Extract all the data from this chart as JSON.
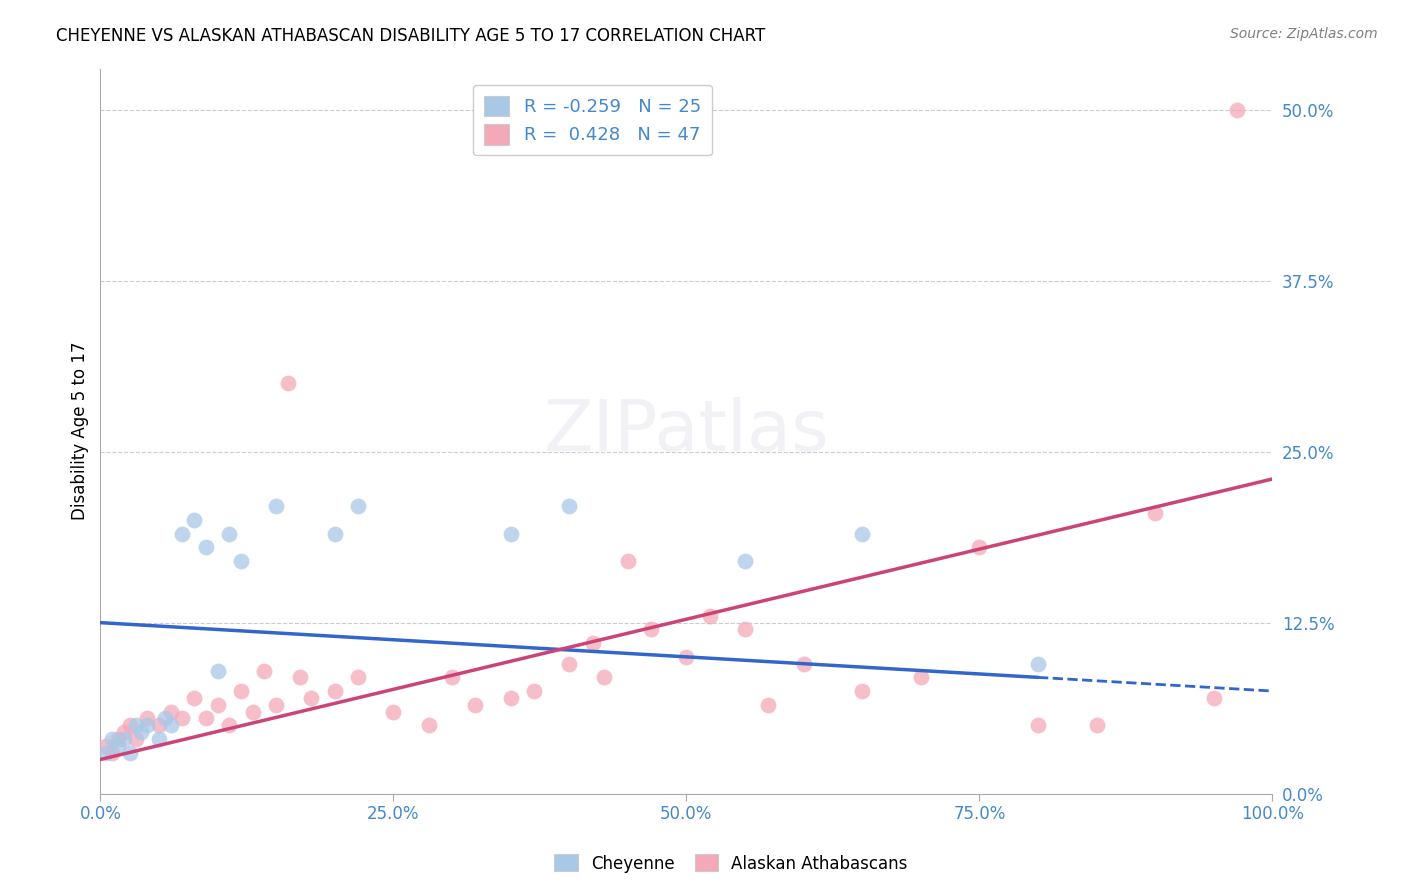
{
  "title": "CHEYENNE VS ALASKAN ATHABASCAN DISABILITY AGE 5 TO 17 CORRELATION CHART",
  "source": "Source: ZipAtlas.com",
  "ylabel": "Disability Age 5 to 17",
  "xlim": [
    0,
    100
  ],
  "ylim": [
    0,
    53
  ],
  "yticks": [
    0,
    12.5,
    25.0,
    37.5,
    50.0
  ],
  "xticks": [
    0,
    25,
    50,
    75,
    100
  ],
  "xtick_labels": [
    "0.0%",
    "25.0%",
    "50.0%",
    "75.0%",
    "100.0%"
  ],
  "ytick_labels": [
    "0.0%",
    "12.5%",
    "25.0%",
    "37.5%",
    "50.0%"
  ],
  "cheyenne_color": "#a8c8e8",
  "alaskan_color": "#f4a8b8",
  "cheyenne_line_color": "#3366cc",
  "alaskan_line_color": "#cc4477",
  "legend_R_cheyenne": "-0.259",
  "legend_N_cheyenne": "25",
  "legend_R_alaskan": "0.428",
  "legend_N_alaskan": "47",
  "cheyenne_x": [
    0.5,
    1.0,
    1.5,
    2.0,
    2.5,
    3.0,
    3.5,
    4.0,
    5.0,
    5.5,
    6.0,
    7.0,
    8.0,
    9.0,
    10.0,
    11.0,
    12.0,
    15.0,
    20.0,
    22.0,
    35.0,
    40.0,
    55.0,
    65.0,
    80.0
  ],
  "cheyenne_y": [
    3.0,
    4.0,
    3.5,
    4.0,
    3.0,
    5.0,
    4.5,
    5.0,
    4.0,
    5.5,
    5.0,
    19.0,
    20.0,
    18.0,
    9.0,
    19.0,
    17.0,
    21.0,
    19.0,
    21.0,
    19.0,
    21.0,
    17.0,
    19.0,
    9.5
  ],
  "alaskan_x": [
    0.5,
    1.0,
    1.5,
    2.0,
    2.5,
    3.0,
    4.0,
    5.0,
    6.0,
    7.0,
    8.0,
    9.0,
    10.0,
    11.0,
    12.0,
    13.0,
    14.0,
    15.0,
    16.0,
    17.0,
    18.0,
    20.0,
    22.0,
    25.0,
    28.0,
    30.0,
    32.0,
    35.0,
    37.0,
    40.0,
    42.0,
    43.0,
    45.0,
    47.0,
    50.0,
    52.0,
    55.0,
    57.0,
    60.0,
    65.0,
    70.0,
    75.0,
    80.0,
    85.0,
    90.0,
    95.0,
    97.0
  ],
  "alaskan_y": [
    3.5,
    3.0,
    4.0,
    4.5,
    5.0,
    4.0,
    5.5,
    5.0,
    6.0,
    5.5,
    7.0,
    5.5,
    6.5,
    5.0,
    7.5,
    6.0,
    9.0,
    6.5,
    30.0,
    8.5,
    7.0,
    7.5,
    8.5,
    6.0,
    5.0,
    8.5,
    6.5,
    7.0,
    7.5,
    9.5,
    11.0,
    8.5,
    17.0,
    12.0,
    10.0,
    13.0,
    12.0,
    6.5,
    9.5,
    7.5,
    8.5,
    18.0,
    5.0,
    5.0,
    20.5,
    7.0,
    50.0
  ],
  "cheyenne_line_x0": 0,
  "cheyenne_line_x1": 100,
  "cheyenne_line_y0": 12.5,
  "cheyenne_line_y1": 7.5,
  "cheyenne_solid_end": 80,
  "alaskan_line_x0": 0,
  "alaskan_line_x1": 100,
  "alaskan_line_y0": 2.5,
  "alaskan_line_y1": 23.0,
  "background_color": "#ffffff",
  "grid_color": "#cccccc",
  "tick_label_color": "#4488cc",
  "legend_text_color": "#4488cc"
}
